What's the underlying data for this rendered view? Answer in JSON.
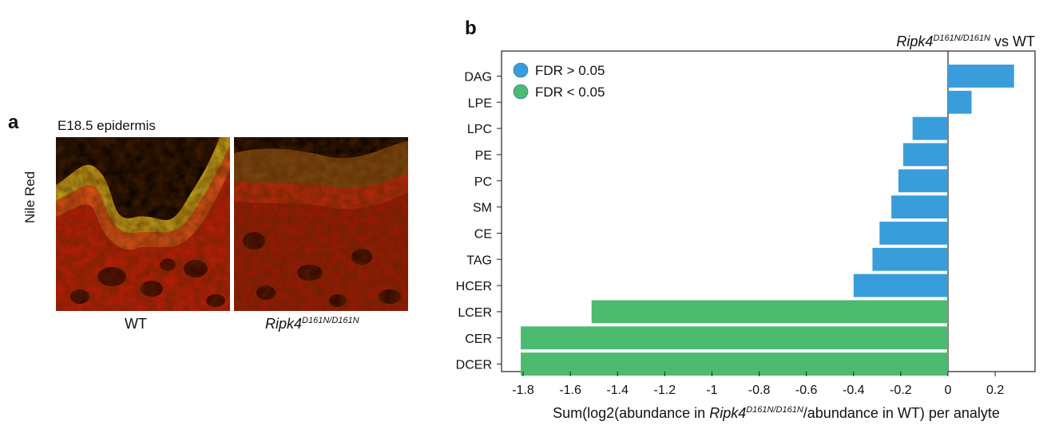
{
  "panel_a": {
    "letter": "a",
    "title": "E18.5 epidermis",
    "stain_label": "Nile Red",
    "caption_wt": "WT",
    "caption_mut_base": "Ripk4",
    "caption_mut_sup": "D161N/D161N"
  },
  "panel_b": {
    "letter": "b"
  },
  "chart_data": {
    "type": "bar",
    "orientation": "horizontal",
    "title_parts": [
      "Ripk4",
      "D161N/D161N",
      " vs WT"
    ],
    "xlabel_parts": [
      "Sum(log2(abundance in ",
      "Ripk4",
      "D161N/D161N",
      "/abundance in WT) per analyte"
    ],
    "categories": [
      "DAG",
      "LPE",
      "LPC",
      "PE",
      "PC",
      "SM",
      "CE",
      "TAG",
      "HCER",
      "LCER",
      "CER",
      "DCER"
    ],
    "values": [
      0.28,
      0.1,
      -0.15,
      -0.19,
      -0.21,
      -0.24,
      -0.29,
      -0.32,
      -0.4,
      -1.51,
      -1.81,
      -1.81
    ],
    "significance": [
      "FDR > 0.05",
      "FDR > 0.05",
      "FDR > 0.05",
      "FDR > 0.05",
      "FDR > 0.05",
      "FDR > 0.05",
      "FDR > 0.05",
      "FDR > 0.05",
      "FDR > 0.05",
      "FDR < 0.05",
      "FDR < 0.05",
      "FDR < 0.05"
    ],
    "legend": [
      {
        "label": "FDR > 0.05",
        "color": "#3a9ddb"
      },
      {
        "label": "FDR < 0.05",
        "color": "#4cba6f"
      }
    ],
    "legend_position": "top-left",
    "xticks": [
      -1.8,
      -1.6,
      -1.4,
      -1.2,
      -1,
      -0.8,
      -0.6,
      -0.4,
      -0.2,
      0,
      0.2
    ],
    "xtick_labels": [
      "-1.8",
      "-1.6",
      "-1.4",
      "-1.2",
      "-1",
      "-0.8",
      "-0.6",
      "-0.4",
      "-0.2",
      "0",
      "0.2"
    ],
    "xlim": [
      -1.9,
      0.3
    ],
    "grid": false
  }
}
